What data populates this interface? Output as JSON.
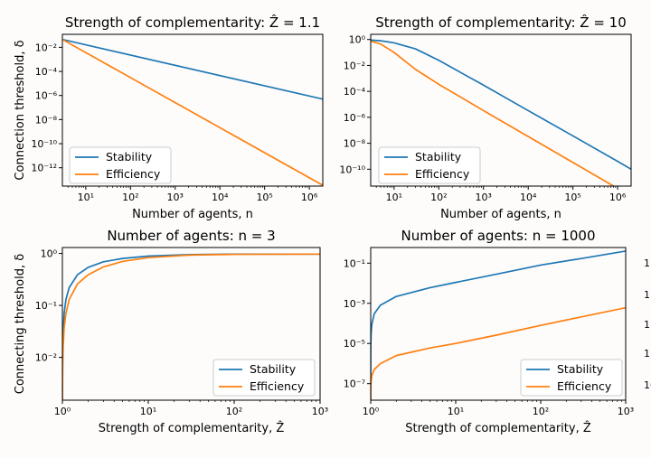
{
  "chart_data": [
    {
      "type": "line",
      "title": "Strength of complementarity: Ẑ = 1.1",
      "xlabel": "Number of agents, n",
      "ylabel": "Connection threshold, δ",
      "xscale": "log",
      "yscale": "log",
      "xlim": [
        3,
        2000000
      ],
      "ylim": [
        3e-14,
        0.12
      ],
      "xticks": [
        {
          "v": 10,
          "label": "10¹"
        },
        {
          "v": 100,
          "label": "10²"
        },
        {
          "v": 1000,
          "label": "10³"
        },
        {
          "v": 10000,
          "label": "10⁴"
        },
        {
          "v": 100000,
          "label": "10⁵"
        },
        {
          "v": 1000000,
          "label": "10⁶"
        }
      ],
      "yticks": [
        {
          "v": 0.01,
          "label": "10⁻²"
        },
        {
          "v": 0.0001,
          "label": "10⁻⁴"
        },
        {
          "v": 1e-06,
          "label": "10⁻⁶"
        },
        {
          "v": 1e-08,
          "label": "10⁻⁸"
        },
        {
          "v": 1e-10,
          "label": "10⁻¹⁰"
        },
        {
          "v": 1e-12,
          "label": "10⁻¹²"
        }
      ],
      "legend": "lower-left",
      "series": [
        {
          "name": "Stability",
          "color": "#1f77b4",
          "x": [
            3,
            2000000
          ],
          "y": [
            0.045,
            5e-07
          ]
        },
        {
          "name": "Efficiency",
          "color": "#ff7f0e",
          "x": [
            3,
            2000000
          ],
          "y": [
            0.045,
            3.5e-14
          ]
        }
      ]
    },
    {
      "type": "line",
      "title": "Strength of complementarity: Ẑ = 10",
      "xlabel": "Number of agents, n",
      "ylabel": "",
      "xscale": "log",
      "yscale": "log",
      "xlim": [
        3,
        2000000
      ],
      "ylim": [
        5e-12,
        2.5
      ],
      "xticks": [
        {
          "v": 10,
          "label": "10¹"
        },
        {
          "v": 100,
          "label": "10²"
        },
        {
          "v": 1000,
          "label": "10³"
        },
        {
          "v": 10000,
          "label": "10⁴"
        },
        {
          "v": 100000,
          "label": "10⁵"
        },
        {
          "v": 1000000,
          "label": "10⁶"
        }
      ],
      "yticks": [
        {
          "v": 1,
          "label": "10⁰"
        },
        {
          "v": 0.01,
          "label": "10⁻²"
        },
        {
          "v": 0.0001,
          "label": "10⁻⁴"
        },
        {
          "v": 1e-06,
          "label": "10⁻⁶"
        },
        {
          "v": 1e-08,
          "label": "10⁻⁸"
        },
        {
          "v": 1e-10,
          "label": "10⁻¹⁰"
        }
      ],
      "legend": "lower-left",
      "series": [
        {
          "name": "Stability",
          "color": "#1f77b4",
          "x": [
            3,
            5,
            10,
            30,
            100,
            300,
            1000,
            10000,
            100000,
            1000000,
            2000000
          ],
          "y": [
            0.9,
            0.8,
            0.55,
            0.19,
            0.025,
            0.003,
            0.0003,
            3.3e-06,
            3.7e-08,
            4e-10,
            1e-10
          ]
        },
        {
          "name": "Efficiency",
          "color": "#ff7f0e",
          "x": [
            3,
            5,
            10,
            30,
            100,
            300,
            1000,
            10000,
            100000,
            1000000,
            2000000
          ],
          "y": [
            0.75,
            0.45,
            0.1,
            0.005,
            0.00035,
            3.8e-05,
            3.3e-06,
            3.3e-08,
            3.3e-10,
            3.3e-12,
            8e-13
          ]
        }
      ]
    },
    {
      "type": "line",
      "title": "Number of agents: n = 3",
      "xlabel": "Strength of complementarity, Ẑ",
      "ylabel": "Connecting threshold, δ",
      "xscale": "log",
      "yscale": "log",
      "xlim": [
        1,
        1000
      ],
      "ylim": [
        0.0015,
        1.3
      ],
      "xticks": [
        {
          "v": 1,
          "label": "10⁰"
        },
        {
          "v": 10,
          "label": "10¹"
        },
        {
          "v": 100,
          "label": "10²"
        },
        {
          "v": 1000,
          "label": "10³"
        }
      ],
      "yticks": [
        {
          "v": 1,
          "label": "10⁰"
        },
        {
          "v": 0.1,
          "label": "10⁻¹"
        },
        {
          "v": 0.01,
          "label": "10⁻²"
        }
      ],
      "legend": "lower-right",
      "series": [
        {
          "name": "Stability",
          "color": "#1f77b4",
          "x": [
            1.0,
            1.001,
            1.003,
            1.01,
            1.02,
            1.05,
            1.1,
            1.2,
            1.5,
            2,
            3,
            5,
            10,
            30,
            100,
            1000
          ],
          "y": [
            0.0015,
            0.0016,
            0.0048,
            0.016,
            0.03,
            0.072,
            0.13,
            0.22,
            0.39,
            0.54,
            0.69,
            0.8,
            0.89,
            0.95,
            0.97,
            0.97
          ]
        },
        {
          "name": "Efficiency",
          "color": "#ff7f0e",
          "x": [
            1.0,
            1.001,
            1.003,
            1.01,
            1.02,
            1.05,
            1.1,
            1.2,
            1.5,
            2,
            3,
            5,
            10,
            30,
            100,
            1000
          ],
          "y": [
            0.0015,
            0.0016,
            0.0025,
            0.008,
            0.016,
            0.038,
            0.07,
            0.13,
            0.26,
            0.39,
            0.55,
            0.7,
            0.83,
            0.93,
            0.96,
            0.97
          ]
        }
      ]
    },
    {
      "type": "line",
      "title": "Number of agents: n = 1000",
      "xlabel": "Strength of complementarity, Ẑ",
      "ylabel": "",
      "xscale": "log",
      "yscale": "log",
      "xlim": [
        1,
        1000
      ],
      "ylim": [
        1.5e-08,
        0.6
      ],
      "xticks": [
        {
          "v": 1,
          "label": "10⁰"
        },
        {
          "v": 10,
          "label": "10¹"
        },
        {
          "v": 100,
          "label": "10²"
        },
        {
          "v": 1000,
          "label": "10³"
        }
      ],
      "yticks": [
        {
          "v": 0.1,
          "label": "10⁻¹"
        },
        {
          "v": 0.001,
          "label": "10⁻³"
        },
        {
          "v": 1e-05,
          "label": "10⁻⁵"
        },
        {
          "v": 1e-07,
          "label": "10⁻⁷"
        }
      ],
      "legend": "lower-right",
      "series": [
        {
          "name": "Stability",
          "color": "#1f77b4",
          "x": [
            1.0,
            1.0005,
            1.001,
            1.003,
            1.01,
            1.03,
            1.1,
            1.3,
            2,
            5,
            10,
            30,
            100,
            300,
            1000
          ],
          "y": [
            1.5e-08,
            1e-06,
            3e-06,
            9e-06,
            3e-05,
            9e-05,
            0.0003,
            0.0008,
            0.0022,
            0.006,
            0.011,
            0.028,
            0.08,
            0.17,
            0.4
          ]
        },
        {
          "name": "Efficiency",
          "color": "#ff7f0e",
          "x": [
            1.0,
            1.0005,
            1.001,
            1.003,
            1.01,
            1.03,
            1.1,
            1.3,
            2,
            5,
            10,
            30,
            100,
            300,
            1000
          ],
          "y": [
            1.5e-08,
            2e-08,
            3e-08,
            6e-08,
            1.2e-07,
            2.5e-07,
            5e-07,
            1e-06,
            2.5e-06,
            6e-06,
            1e-05,
            2.6e-05,
            8e-05,
            0.00021,
            0.0006
          ]
        }
      ]
    }
  ],
  "edge_fragments": [
    "1",
    "1",
    "1",
    "1",
    "10"
  ]
}
